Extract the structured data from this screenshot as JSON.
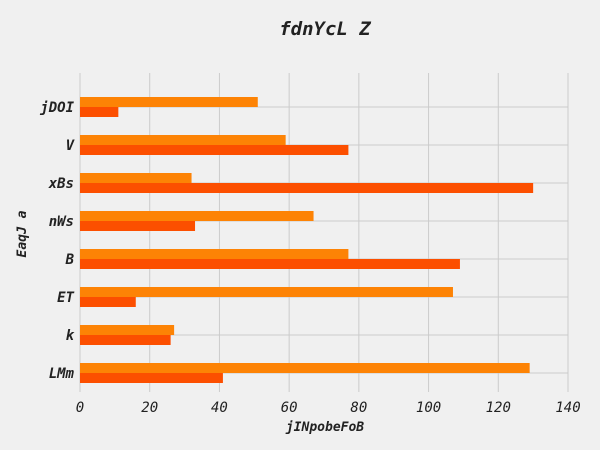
{
  "chart_data": {
    "type": "bar",
    "orientation": "horizontal",
    "title": "fdnYcL Z",
    "xlabel": "jINpobeFoB",
    "ylabel": "EaqJ a",
    "categories": [
      "LMm",
      "k",
      "ET",
      "B",
      "nWs",
      "xBs",
      "V",
      "jDOI"
    ],
    "series": [
      {
        "color": "#fc4f00",
        "values": [
          41,
          26,
          16,
          109,
          33,
          130,
          77,
          11
        ]
      },
      {
        "color": "#fd8305",
        "values": [
          129,
          27,
          107,
          77,
          67,
          32,
          59,
          51
        ]
      }
    ],
    "xlim": [
      0,
      140
    ],
    "xticks": [
      0,
      20,
      40,
      60,
      80,
      100,
      120,
      140
    ],
    "grid": true,
    "background": "#f0f0f0"
  }
}
